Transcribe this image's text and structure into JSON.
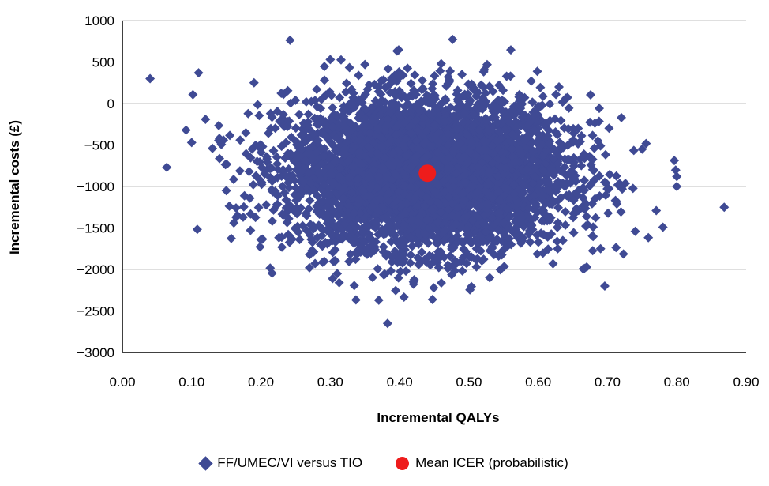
{
  "chart_data": {
    "type": "scatter",
    "title": "",
    "xlabel": "Incremental QALYs",
    "ylabel": "Incremental costs (£)",
    "xlim": [
      0.0,
      0.9
    ],
    "ylim": [
      -3000,
      1000
    ],
    "x_ticks": [
      "0.00",
      "0.10",
      "0.20",
      "0.30",
      "0.40",
      "0.50",
      "0.60",
      "0.70",
      "0.80",
      "0.90"
    ],
    "y_ticks": [
      "1000",
      "500",
      "0",
      "−500",
      "−1000",
      "−1500",
      "−2000",
      "−2500",
      "−3000"
    ],
    "grid": "horizontal",
    "legend_position": "bottom",
    "series": [
      {
        "name": "FF/UMEC/VI versus TIO",
        "color": "#3f4a94",
        "marker": "diamond",
        "cloud": {
          "points": 5000,
          "x_mean": 0.44,
          "x_sd": 0.1,
          "y_mean": -840,
          "y_sd": 450
        },
        "points": [
          [
            0.04,
            300
          ],
          [
            0.11,
            370
          ],
          [
            0.1,
            -470
          ],
          [
            0.12,
            -190
          ],
          [
            0.15,
            -1050
          ],
          [
            0.37,
            -2370
          ],
          [
            0.42,
            -2150
          ],
          [
            0.3,
            530
          ],
          [
            0.35,
            470
          ],
          [
            0.46,
            480
          ],
          [
            0.63,
            200
          ],
          [
            0.72,
            -170
          ],
          [
            0.78,
            -1490
          ],
          [
            0.8,
            -880
          ],
          [
            0.8,
            -1000
          ],
          [
            0.75,
            -550
          ],
          [
            0.67,
            -1970
          ],
          [
            0.31,
            -2050
          ],
          [
            0.53,
            -2100
          ],
          [
            0.27,
            -1980
          ],
          [
            0.2,
            -1640
          ],
          [
            0.17,
            -440
          ],
          [
            0.14,
            -420
          ],
          [
            0.13,
            -540
          ],
          [
            0.19,
            250
          ],
          [
            0.49,
            350
          ],
          [
            0.56,
            330
          ],
          [
            0.59,
            270
          ],
          [
            0.74,
            -1540
          ],
          [
            0.69,
            -1750
          ]
        ]
      },
      {
        "name": "Mean ICER (probabilistic)",
        "color": "#ee1c1c",
        "marker": "circle",
        "points": [
          [
            0.44,
            -840
          ]
        ]
      }
    ]
  }
}
